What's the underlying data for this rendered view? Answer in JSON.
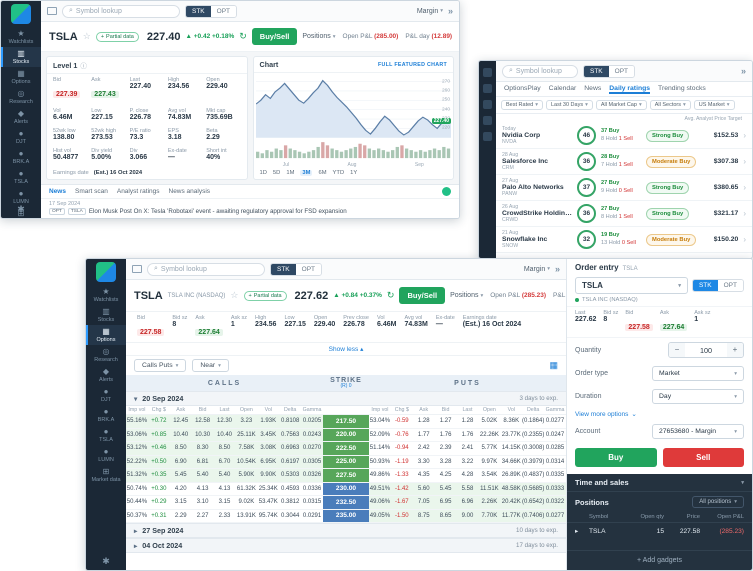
{
  "shared": {
    "search_placeholder": "Symbol lookup",
    "stk": "STK",
    "opt": "OPT",
    "margin": "Margin"
  },
  "colors": {
    "accent_blue": "#1c7ed6",
    "buy_green": "#21a45d",
    "sell_red": "#df3a3a",
    "bid_red": "#c62828",
    "ask_green": "#1e7e34",
    "sidebar_dark": "#1b2836",
    "strike_itm_green": "#57a65a",
    "strike_otm_blue": "#4a7dbb"
  },
  "sidebar": {
    "items": [
      {
        "label": "Watchlists",
        "icon": "star"
      },
      {
        "label": "Stocks",
        "icon": "chart"
      },
      {
        "label": "Options",
        "icon": "options"
      },
      {
        "label": "Research",
        "icon": "research"
      },
      {
        "label": "Alerts",
        "icon": "bell"
      },
      {
        "label": "DJT",
        "icon": "ticker"
      },
      {
        "label": "BRK.A",
        "icon": "ticker"
      },
      {
        "label": "TSLA",
        "icon": "ticker"
      },
      {
        "label": "LUMN",
        "icon": "ticker"
      },
      {
        "label": "Market data",
        "icon": "grid"
      }
    ]
  },
  "winA": {
    "ticker": {
      "symbol": "TSLA",
      "name": "TSLA INC (NASDAQ)",
      "partial": "Partial data",
      "price": "227.40",
      "change": "▲ +0.42 +0.18%",
      "buysell": "Buy/Sell",
      "positions_label": "Positions",
      "openpl_label": "Open P&L",
      "openpl": "(285.00)",
      "plday_label": "P&L day",
      "plday": "(12.89)"
    },
    "level1": {
      "title": "Level 1",
      "cells": [
        {
          "label": "Bid",
          "value": "227.39",
          "type": "bid"
        },
        {
          "label": "Ask",
          "value": "227.43",
          "type": "ask"
        },
        {
          "label": "Last",
          "value": "227.40"
        },
        {
          "label": "High",
          "value": "234.56"
        },
        {
          "label": "Open",
          "value": "229.40"
        },
        {
          "label": "Vol",
          "value": "6.46M"
        },
        {
          "label": "Low",
          "value": "227.15"
        },
        {
          "label": "P. close",
          "value": "226.78"
        },
        {
          "label": "Avg vol",
          "value": "74.83M"
        },
        {
          "label": "Mkt cap",
          "value": "735.69B"
        },
        {
          "label": "52wk low",
          "value": "138.80"
        },
        {
          "label": "52wk high",
          "value": "273.53"
        },
        {
          "label": "P/E ratio",
          "value": "73.3"
        },
        {
          "label": "EPS",
          "value": "3.18"
        },
        {
          "label": "Beta",
          "value": "2.29"
        },
        {
          "label": "Hist vol",
          "value": "50.4877"
        },
        {
          "label": "Div yield",
          "value": "5.00%"
        },
        {
          "label": "Div",
          "value": "3.066"
        },
        {
          "label": "Ex-date",
          "value": "—"
        },
        {
          "label": "Short int",
          "value": "40%"
        }
      ],
      "earnings_label": "Earnings date",
      "earnings_value": "(Est.) 16 Oct 2024"
    },
    "chart": {
      "title": "Chart",
      "link": "FULL FEATURED CHART",
      "yticks": [
        270,
        260,
        250,
        240,
        230,
        220
      ],
      "ymin": 210,
      "ymax": 275,
      "price_tag": "227.40",
      "points": [
        246,
        250,
        256,
        252,
        259,
        263,
        268,
        262,
        256,
        250,
        247,
        252,
        258,
        263,
        271,
        266,
        259,
        253,
        248,
        243,
        237,
        231,
        224,
        218,
        214,
        220,
        227,
        233,
        229,
        223,
        217,
        213,
        216,
        222,
        228,
        232,
        229,
        224,
        220,
        226,
        230,
        227.4
      ],
      "volumes": [
        0.4,
        0.3,
        0.5,
        0.4,
        0.6,
        0.5,
        0.8,
        0.6,
        0.5,
        0.4,
        0.3,
        0.4,
        0.5,
        0.7,
        1.0,
        0.8,
        0.6,
        0.5,
        0.4,
        0.5,
        0.6,
        0.7,
        0.9,
        0.8,
        0.6,
        0.5,
        0.6,
        0.5,
        0.4,
        0.5,
        0.7,
        0.8,
        0.6,
        0.5,
        0.4,
        0.5,
        0.4,
        0.5,
        0.6,
        0.5,
        0.7,
        0.6
      ],
      "xticks": [
        "Jul",
        "Aug",
        "Sep"
      ],
      "timeframes": [
        "1D",
        "5D",
        "1M",
        "3M",
        "6M",
        "YTD",
        "1Y"
      ],
      "active_timeframe": "3M"
    },
    "news": {
      "tabs": [
        "News",
        "Smart scan",
        "Analyst ratings",
        "News analysis"
      ],
      "active_tab": "News",
      "date": "17 Sep 2024",
      "badges": [
        "OPT",
        "TSLA"
      ],
      "headline": "Elon Musk Post On X: Tesla 'Robotaxi' event - awaiting regulatory approval for FSD expansion"
    }
  },
  "winB": {
    "tabs": [
      "OptionsPlay",
      "Calendar",
      "News",
      "Daily ratings",
      "Trending stocks"
    ],
    "active_tab": "Daily ratings",
    "filters": [
      "Best Rated",
      "Last 30 Days",
      "All Market Cap",
      "All Sectors",
      "US Market"
    ],
    "list_header": "Avg. Analyst Price Target",
    "rows": [
      {
        "date": "Today",
        "company": "Nvidia Corp",
        "ticker": "NVDA",
        "score": "46",
        "buy": "37 Buy",
        "hold": "8 Hold",
        "sell": "1 Sell",
        "rating": "Strong Buy",
        "target": "$152.53"
      },
      {
        "date": "28 Aug",
        "company": "Salesforce Inc",
        "ticker": "CRM",
        "score": "36",
        "buy": "28 Buy",
        "hold": "7 Hold",
        "sell": "1 Sell",
        "rating": "Moderate Buy",
        "target": "$307.38"
      },
      {
        "date": "27 Aug",
        "company": "Palo Alto Networks",
        "ticker": "PANW",
        "score": "37",
        "buy": "27 Buy",
        "hold": "9 Hold",
        "sell": "0 Sell",
        "rating": "Strong Buy",
        "target": "$380.65"
      },
      {
        "date": "26 Aug",
        "company": "CrowdStrike Holdings",
        "ticker": "CRWD",
        "score": "36",
        "buy": "27 Buy",
        "hold": "8 Hold",
        "sell": "1 Sell",
        "rating": "Strong Buy",
        "target": "$321.17"
      },
      {
        "date": "21 Aug",
        "company": "Snowflake Inc",
        "ticker": "SNOW",
        "score": "32",
        "buy": "19 Buy",
        "hold": "13 Hold",
        "sell": "0 Sell",
        "rating": "Moderate Buy",
        "target": "$150.20"
      }
    ]
  },
  "winC": {
    "ticker": {
      "symbol": "TSLA",
      "name": "TSLA INC (NASDAQ)",
      "partial": "Partial data",
      "price": "227.62",
      "change": "▲ +0.84 +0.37%",
      "buysell": "Buy/Sell",
      "positions_label": "Positions",
      "openpl_label": "Open P&L",
      "openpl": "(285.23)",
      "plday_label": "P&L day",
      "plday": "(12.89)"
    },
    "stats": [
      {
        "label": "Bid",
        "value": "227.58",
        "type": "bid"
      },
      {
        "label": "Bid sz",
        "value": "8"
      },
      {
        "label": "Ask",
        "value": "227.64",
        "type": "ask"
      },
      {
        "label": "Ask sz",
        "value": "1"
      },
      {
        "label": "High",
        "value": "234.56"
      },
      {
        "label": "Low",
        "value": "227.15"
      },
      {
        "label": "Open",
        "value": "229.40"
      },
      {
        "label": "Prev close",
        "value": "226.78"
      },
      {
        "label": "Vol",
        "value": "6.46M"
      },
      {
        "label": "Avg vol",
        "value": "74.83M"
      },
      {
        "label": "Ex-date",
        "value": "—"
      },
      {
        "label": "Earnings date",
        "value": "(Est.) 16 Oct 2024"
      }
    ],
    "show_less": "Show less",
    "filters": {
      "callsputs": "Calls Puts",
      "range": "Near"
    },
    "chain": {
      "calls_header": "CALLS",
      "strike_header": "STRIKE",
      "strike_sub": "(R) 0",
      "puts_header": "PUTS",
      "col_headers": [
        "Imp vol",
        "Chg $",
        "Ask",
        "Bid",
        "Last",
        "Open",
        "Vol",
        "Delta",
        "Gamma"
      ],
      "expiry": {
        "date": "20 Sep 2024",
        "days": "3 days to exp."
      },
      "rows": [
        {
          "strike": "217.50",
          "itm": "calls",
          "calls": [
            "55.16%",
            "+0.72",
            "12.45",
            "12.58",
            "12.30",
            "3.23",
            "1.93K",
            "0.8108",
            "0.0205"
          ],
          "puts": [
            "53.04%",
            "-0.59",
            "1.28",
            "1.27",
            "1.28",
            "5.02K",
            "8.36K",
            "(0.1864)",
            "0.0277"
          ]
        },
        {
          "strike": "220.00",
          "itm": "calls",
          "calls": [
            "53.06%",
            "+0.85",
            "10.40",
            "10.30",
            "10.40",
            "25.11K",
            "3.45K",
            "0.7563",
            "0.0243"
          ],
          "puts": [
            "52.09%",
            "-0.76",
            "1.77",
            "1.76",
            "1.76",
            "22.26K",
            "23.77K",
            "(0.2355)",
            "0.0247"
          ]
        },
        {
          "strike": "222.50",
          "itm": "calls",
          "calls": [
            "53.12%",
            "+0.46",
            "8.50",
            "8.30",
            "8.50",
            "7.58K",
            "3.08K",
            "0.6963",
            "0.0270"
          ],
          "puts": [
            "51.14%",
            "-0.94",
            "2.42",
            "2.39",
            "2.41",
            "5.77K",
            "14.15K",
            "(0.3008)",
            "0.0285"
          ]
        },
        {
          "strike": "225.00",
          "itm": "calls",
          "calls": [
            "52.22%",
            "+0.50",
            "6.90",
            "6.81",
            "6.70",
            "10.54K",
            "6.95K",
            "0.6197",
            "0.0305"
          ],
          "puts": [
            "50.93%",
            "-1.19",
            "3.30",
            "3.28",
            "3.22",
            "9.97K",
            "34.66K",
            "(0.3979)",
            "0.0314"
          ]
        },
        {
          "strike": "227.50",
          "itm": "calls",
          "calls": [
            "51.32%",
            "+0.35",
            "5.45",
            "5.40",
            "5.40",
            "5.90K",
            "9.90K",
            "0.5303",
            "0.0326"
          ],
          "puts": [
            "49.86%",
            "-1.33",
            "4.35",
            "4.25",
            "4.28",
            "3.54K",
            "26.89K",
            "(0.4837)",
            "0.0335"
          ]
        },
        {
          "strike": "230.00",
          "itm": "puts",
          "calls": [
            "50.74%",
            "+0.30",
            "4.20",
            "4.13",
            "4.13",
            "61.32K",
            "25.34K",
            "0.4593",
            "0.0336"
          ],
          "puts": [
            "49.51%",
            "-1.42",
            "5.60",
            "5.45",
            "5.58",
            "11.51K",
            "48.58K",
            "(0.5685)",
            "0.0333"
          ]
        },
        {
          "strike": "232.50",
          "itm": "puts",
          "calls": [
            "50.44%",
            "+0.29",
            "3.15",
            "3.10",
            "3.15",
            "9.02K",
            "53.47K",
            "0.3812",
            "0.0315"
          ],
          "puts": [
            "49.06%",
            "-1.67",
            "7.05",
            "6.95",
            "6.96",
            "2.26K",
            "20.42K",
            "(0.6542)",
            "0.0322"
          ]
        },
        {
          "strike": "235.00",
          "itm": "puts",
          "calls": [
            "50.37%",
            "+0.31",
            "2.29",
            "2.27",
            "2.33",
            "13.91K",
            "95.74K",
            "0.3044",
            "0.0291"
          ],
          "puts": [
            "49.05%",
            "-1.50",
            "8.75",
            "8.65",
            "9.00",
            "7.70K",
            "11.77K",
            "(0.7406)",
            "0.0277"
          ]
        }
      ],
      "collapsed": [
        {
          "date": "27 Sep 2024",
          "days": "10 days to exp."
        },
        {
          "date": "04 Oct 2024",
          "days": "17 days to exp."
        }
      ]
    }
  },
  "order": {
    "title": "Order entry",
    "title_symbol": "TSLA",
    "symbol_input": "TSLA",
    "name": "TSLA INC (NASDAQ)",
    "stats": [
      {
        "label": "Last",
        "value": "227.62"
      },
      {
        "label": "Bid sz",
        "value": "8"
      },
      {
        "label": "Bid",
        "value": "227.58",
        "type": "bid"
      },
      {
        "label": "Ask",
        "value": "227.64",
        "type": "ask"
      },
      {
        "label": "Ask sz",
        "value": "1"
      }
    ],
    "quantity_label": "Quantity",
    "quantity": "100",
    "ordertype_label": "Order type",
    "ordertype": "Market",
    "duration_label": "Duration",
    "duration": "Day",
    "more_options": "View more options",
    "account_label": "Account",
    "account": "27653680 - Margin",
    "buy": "Buy",
    "sell": "Sell",
    "tas_title": "Time and sales",
    "positions_title": "Positions",
    "positions_filter": "All positions",
    "pos_headers": [
      "Symbol",
      "Open qty",
      "Price",
      "Open P&L"
    ],
    "position": {
      "symbol": "TSLA",
      "qty": "15",
      "price": "227.58",
      "pl": "(285.23)"
    },
    "add_gadgets": "Add gadgets"
  }
}
